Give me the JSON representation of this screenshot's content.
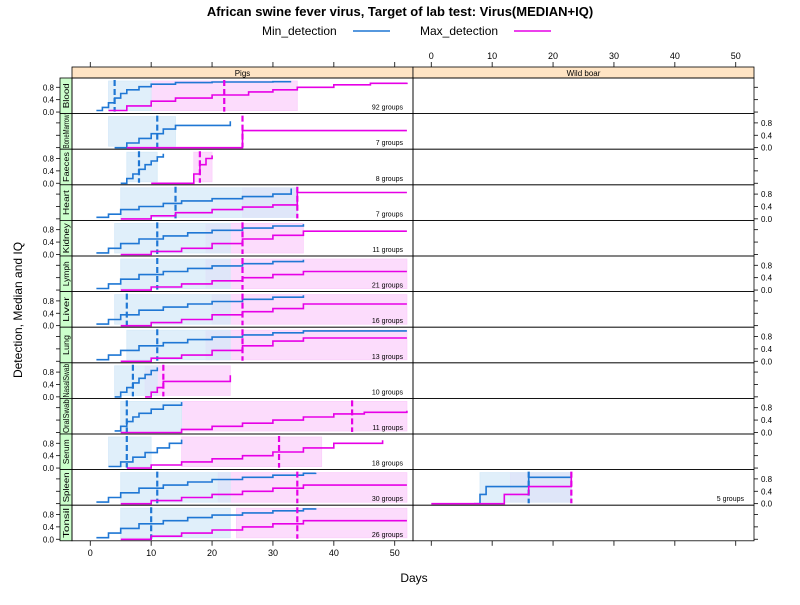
{
  "chart_data": {
    "type": "line",
    "title": "African swine fever virus, Target of lab test: Virus(MEDIAN+IQ)",
    "xlabel": "Days",
    "ylabel": "Detection, Median and IQ",
    "xlim": [
      -3,
      53
    ],
    "ylim": [
      -0.05,
      1.1
    ],
    "x_ticks": [
      0,
      10,
      20,
      30,
      40,
      50
    ],
    "y_ticks": [
      0.0,
      0.4,
      0.8
    ],
    "y_tick_labels": [
      "0.0",
      "0.4",
      "0.8"
    ],
    "legend": {
      "placement": "top",
      "entries": [
        "Min_detection",
        "Max_detection"
      ]
    },
    "colors": {
      "min": "#1f77d4",
      "max": "#e600e6",
      "min_band": "#d6eaf8",
      "max_band": "#fbd0fb",
      "strip": "#ffe4c4",
      "tissue_strip": "#ccffcc"
    },
    "columns": [
      "Pigs",
      "Wild boar"
    ],
    "panels": [
      {
        "tissue": "Blood",
        "column": 0,
        "groups_label": "92 groups",
        "min": {
          "x": [
            1,
            2,
            3,
            4,
            5,
            6,
            8,
            10,
            14,
            20,
            30,
            33
          ],
          "y": [
            0.05,
            0.15,
            0.3,
            0.45,
            0.6,
            0.72,
            0.82,
            0.9,
            0.95,
            0.97,
            0.98,
            0.98
          ],
          "median": 4,
          "iq": [
            3,
            10
          ]
        },
        "max": {
          "x": [
            3,
            6,
            10,
            14,
            20,
            26,
            30,
            34,
            40,
            46,
            52
          ],
          "y": [
            0.05,
            0.2,
            0.35,
            0.45,
            0.55,
            0.65,
            0.72,
            0.8,
            0.88,
            0.93,
            0.95
          ],
          "median": 22,
          "iq": [
            10,
            34
          ]
        }
      },
      {
        "tissue": "BoneMarrow",
        "column": 0,
        "groups_label": "7 groups",
        "min": {
          "x": [
            4,
            6,
            8,
            10,
            12,
            14,
            23
          ],
          "y": [
            0.0,
            0.15,
            0.3,
            0.45,
            0.6,
            0.72,
            0.85
          ],
          "median": 11,
          "iq": [
            3,
            14
          ]
        },
        "max": {
          "x": [
            6,
            25,
            52
          ],
          "y": [
            0.0,
            0.55,
            0.55
          ],
          "median": 25,
          "iq": [
            25,
            25
          ]
        }
      },
      {
        "tissue": "Faeces",
        "column": 0,
        "groups_label": "8 groups",
        "min": {
          "x": [
            5,
            6,
            7,
            8,
            9,
            10,
            11,
            12
          ],
          "y": [
            0.0,
            0.15,
            0.3,
            0.45,
            0.6,
            0.72,
            0.85,
            0.95
          ],
          "median": 8,
          "iq": [
            6,
            11
          ]
        },
        "max": {
          "x": [
            10,
            17,
            18,
            19,
            20
          ],
          "y": [
            0.0,
            0.3,
            0.6,
            0.8,
            0.9
          ],
          "median": 18,
          "iq": [
            17,
            20
          ]
        }
      },
      {
        "tissue": "Heart",
        "column": 0,
        "groups_label": "7 groups",
        "min": {
          "x": [
            1,
            3,
            5,
            8,
            12,
            15,
            20,
            25,
            30,
            33
          ],
          "y": [
            0.05,
            0.15,
            0.3,
            0.4,
            0.5,
            0.58,
            0.65,
            0.72,
            0.8,
            0.98
          ],
          "median": 14,
          "iq": [
            5,
            34
          ]
        },
        "max": {
          "x": [
            5,
            10,
            14,
            20,
            25,
            30,
            34,
            52
          ],
          "y": [
            0.0,
            0.1,
            0.2,
            0.3,
            0.38,
            0.45,
            0.85,
            0.85
          ],
          "median": 34,
          "iq": [
            25,
            34
          ]
        }
      },
      {
        "tissue": "Kidney",
        "column": 0,
        "groups_label": "11 groups",
        "min": {
          "x": [
            1,
            3,
            5,
            8,
            12,
            16,
            20,
            25,
            30,
            35
          ],
          "y": [
            0.05,
            0.2,
            0.35,
            0.5,
            0.6,
            0.7,
            0.78,
            0.85,
            0.92,
            0.98
          ],
          "median": 11,
          "iq": [
            4,
            23
          ]
        },
        "max": {
          "x": [
            5,
            10,
            15,
            20,
            25,
            30,
            35,
            52
          ],
          "y": [
            0.0,
            0.1,
            0.2,
            0.35,
            0.5,
            0.62,
            0.75,
            0.75
          ],
          "median": 25,
          "iq": [
            19,
            35
          ]
        }
      },
      {
        "tissue": "Lymph",
        "column": 0,
        "groups_label": "21 groups",
        "min": {
          "x": [
            1,
            3,
            5,
            8,
            12,
            16,
            20,
            25,
            30,
            35
          ],
          "y": [
            0.05,
            0.2,
            0.35,
            0.5,
            0.6,
            0.7,
            0.78,
            0.85,
            0.92,
            0.98
          ],
          "median": 11,
          "iq": [
            5,
            23
          ]
        },
        "max": {
          "x": [
            5,
            10,
            15,
            20,
            25,
            30,
            35,
            52
          ],
          "y": [
            0.0,
            0.1,
            0.2,
            0.3,
            0.4,
            0.5,
            0.6,
            0.6
          ],
          "median": 25,
          "iq": [
            19,
            52
          ]
        }
      },
      {
        "tissue": "Liver",
        "column": 0,
        "groups_label": "16 groups",
        "min": {
          "x": [
            1,
            3,
            5,
            8,
            12,
            16,
            20,
            25,
            30,
            35
          ],
          "y": [
            0.05,
            0.2,
            0.35,
            0.5,
            0.6,
            0.7,
            0.78,
            0.85,
            0.92,
            0.98
          ],
          "median": 6,
          "iq": [
            4,
            23
          ]
        },
        "max": {
          "x": [
            5,
            10,
            15,
            20,
            25,
            30,
            35,
            52
          ],
          "y": [
            0.0,
            0.1,
            0.2,
            0.35,
            0.45,
            0.55,
            0.7,
            0.7
          ],
          "median": 25,
          "iq": [
            20,
            52
          ]
        }
      },
      {
        "tissue": "Lung",
        "column": 0,
        "groups_label": "13 groups",
        "min": {
          "x": [
            1,
            3,
            5,
            8,
            12,
            16,
            20,
            25,
            30,
            35,
            52
          ],
          "y": [
            0.05,
            0.2,
            0.35,
            0.5,
            0.6,
            0.7,
            0.78,
            0.85,
            0.92,
            0.98,
            0.98
          ],
          "median": 11,
          "iq": [
            6,
            23
          ]
        },
        "max": {
          "x": [
            5,
            10,
            15,
            20,
            25,
            30,
            35,
            52
          ],
          "y": [
            0.0,
            0.1,
            0.2,
            0.35,
            0.5,
            0.65,
            0.75,
            0.75
          ],
          "median": 25,
          "iq": [
            19,
            52
          ]
        }
      },
      {
        "tissue": "NasalSwab",
        "column": 0,
        "groups_label": "10 groups",
        "min": {
          "x": [
            4,
            5,
            6,
            7,
            8,
            9,
            10,
            11
          ],
          "y": [
            0.0,
            0.15,
            0.3,
            0.45,
            0.6,
            0.72,
            0.85,
            0.95
          ],
          "median": 7,
          "iq": [
            4,
            11
          ]
        },
        "max": {
          "x": [
            9,
            10,
            11,
            12,
            23
          ],
          "y": [
            0.0,
            0.15,
            0.3,
            0.5,
            0.7
          ],
          "median": 12,
          "iq": [
            9,
            23
          ]
        }
      },
      {
        "tissue": "OralSwab",
        "column": 0,
        "groups_label": "11 groups",
        "min": {
          "x": [
            4,
            5,
            6,
            7,
            8,
            10,
            12,
            15
          ],
          "y": [
            0.05,
            0.2,
            0.35,
            0.5,
            0.62,
            0.75,
            0.88,
            0.98
          ],
          "median": 6,
          "iq": [
            5,
            15
          ]
        },
        "max": {
          "x": [
            5,
            15,
            20,
            25,
            30,
            35,
            40,
            45,
            52
          ],
          "y": [
            0.0,
            0.1,
            0.2,
            0.3,
            0.4,
            0.5,
            0.6,
            0.65,
            0.7
          ],
          "median": 43,
          "iq": [
            15,
            52
          ]
        }
      },
      {
        "tissue": "Serum",
        "column": 0,
        "groups_label": "18 groups",
        "min": {
          "x": [
            3,
            5,
            7,
            9,
            11,
            13,
            15
          ],
          "y": [
            0.05,
            0.2,
            0.35,
            0.5,
            0.65,
            0.8,
            0.92
          ],
          "median": 6,
          "iq": [
            3,
            10
          ]
        },
        "max": {
          "x": [
            6,
            10,
            15,
            20,
            25,
            30,
            35,
            40,
            48
          ],
          "y": [
            0.0,
            0.1,
            0.2,
            0.3,
            0.4,
            0.52,
            0.65,
            0.8,
            0.9
          ],
          "median": 31,
          "iq": [
            15,
            38
          ]
        }
      },
      {
        "tissue": "Spleen",
        "column": 0,
        "groups_label": "30 groups",
        "min": {
          "x": [
            1,
            3,
            5,
            8,
            12,
            16,
            20,
            25,
            30,
            35,
            37
          ],
          "y": [
            0.05,
            0.2,
            0.35,
            0.5,
            0.6,
            0.7,
            0.78,
            0.85,
            0.92,
            0.98,
            1.0
          ],
          "median": 11,
          "iq": [
            5,
            23
          ]
        },
        "max": {
          "x": [
            5,
            10,
            15,
            20,
            25,
            30,
            35,
            52
          ],
          "y": [
            0.0,
            0.1,
            0.2,
            0.3,
            0.4,
            0.5,
            0.6,
            0.6
          ],
          "median": 34,
          "iq": [
            21,
            52
          ]
        }
      },
      {
        "tissue": "Tonsil",
        "column": 0,
        "groups_label": "26 groups",
        "min": {
          "x": [
            1,
            3,
            5,
            8,
            12,
            16,
            20,
            25,
            30,
            35,
            37
          ],
          "y": [
            0.05,
            0.2,
            0.35,
            0.5,
            0.6,
            0.7,
            0.78,
            0.85,
            0.92,
            0.98,
            1.0
          ],
          "median": 10,
          "iq": [
            5,
            23
          ]
        },
        "max": {
          "x": [
            5,
            10,
            15,
            20,
            25,
            30,
            35,
            52
          ],
          "y": [
            0.0,
            0.1,
            0.2,
            0.3,
            0.4,
            0.5,
            0.6,
            0.6
          ],
          "median": 34,
          "iq": [
            24,
            52
          ]
        }
      },
      {
        "tissue": "Spleen",
        "column": 1,
        "groups_label": "5 groups",
        "min": {
          "x": [
            7,
            8,
            9,
            12,
            16,
            23
          ],
          "y": [
            0.0,
            0.3,
            0.55,
            0.55,
            0.85,
            0.85
          ],
          "median": 16,
          "iq": [
            8,
            23
          ]
        },
        "max": {
          "x": [
            0,
            7,
            12,
            16,
            23
          ],
          "y": [
            0.0,
            0.0,
            0.3,
            0.55,
            1.0
          ],
          "median": 23,
          "iq": [
            13,
            23
          ]
        }
      }
    ]
  }
}
